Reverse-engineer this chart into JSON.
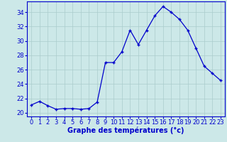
{
  "hours": [
    0,
    1,
    2,
    3,
    4,
    5,
    6,
    7,
    8,
    9,
    10,
    11,
    12,
    13,
    14,
    15,
    16,
    17,
    18,
    19,
    20,
    21,
    22,
    23
  ],
  "temperatures": [
    21.1,
    21.6,
    21.0,
    20.5,
    20.6,
    20.6,
    20.5,
    20.6,
    21.5,
    27.0,
    27.0,
    28.5,
    31.5,
    29.5,
    31.5,
    33.5,
    34.8,
    34.0,
    33.0,
    31.5,
    29.0,
    26.5,
    25.5,
    24.5
  ],
  "line_color": "#0000cc",
  "marker": "+",
  "marker_size": 3,
  "marker_edge_width": 1.0,
  "line_width": 0.9,
  "background_color": "#cce8e8",
  "grid_color": "#aacccc",
  "xlabel": "Graphe des températures (°c)",
  "xlabel_color": "#0000cc",
  "xlabel_fontsize": 7,
  "tick_color": "#0000cc",
  "tick_fontsize": 6,
  "ylim": [
    19.5,
    35.5
  ],
  "xlim": [
    -0.5,
    23.5
  ],
  "yticks": [
    20,
    22,
    24,
    26,
    28,
    30,
    32,
    34
  ],
  "xticks": [
    0,
    1,
    2,
    3,
    4,
    5,
    6,
    7,
    8,
    9,
    10,
    11,
    12,
    13,
    14,
    15,
    16,
    17,
    18,
    19,
    20,
    21,
    22,
    23
  ]
}
